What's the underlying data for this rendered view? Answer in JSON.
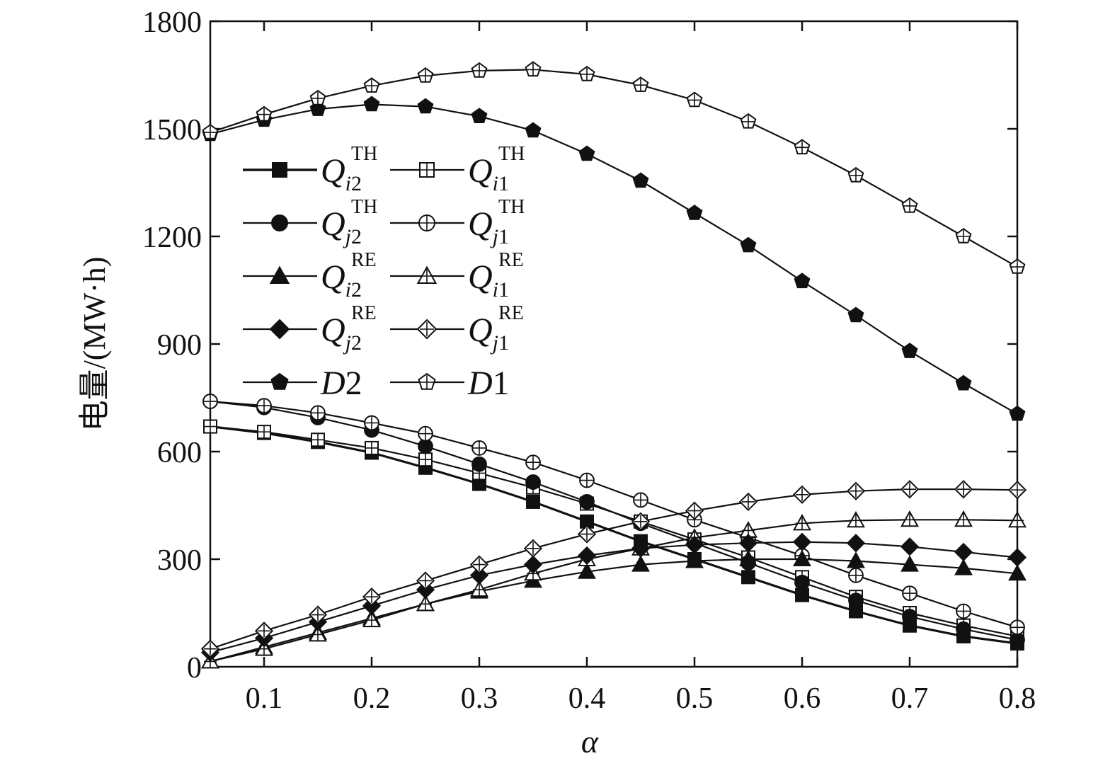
{
  "chart_data": {
    "type": "line",
    "title": "",
    "xlabel": "α",
    "ylabel": "电量/(MW·h)",
    "xlim": [
      0.05,
      0.8
    ],
    "ylim": [
      0,
      1800
    ],
    "xticks": [
      "0.1",
      "0.2",
      "0.3",
      "0.4",
      "0.5",
      "0.6",
      "0.7",
      "0.8"
    ],
    "yticks": [
      "0",
      "300",
      "600",
      "900",
      "1200",
      "1500",
      "1800"
    ],
    "grid": false,
    "legend_placement": "upper-left",
    "x": [
      0.05,
      0.1,
      0.15,
      0.2,
      0.25,
      0.3,
      0.35,
      0.4,
      0.45,
      0.5,
      0.55,
      0.6,
      0.65,
      0.7,
      0.75,
      0.8
    ],
    "series": [
      {
        "label": {
          "main": "Q",
          "sub": "i",
          "subn": "2",
          "sup": "TH"
        },
        "marker": "square-filled",
        "line_weight": "bold",
        "values": [
          670,
          652,
          627,
          597,
          555,
          510,
          460,
          405,
          350,
          300,
          250,
          200,
          155,
          115,
          85,
          65
        ]
      },
      {
        "label": {
          "main": "Q",
          "sub": "i",
          "subn": "1",
          "sup": "TH"
        },
        "marker": "square-open-cross",
        "values": [
          670,
          655,
          633,
          610,
          578,
          540,
          500,
          455,
          405,
          355,
          305,
          250,
          195,
          150,
          115,
          85
        ]
      },
      {
        "label": {
          "main": "Q",
          "sub": "j",
          "subn": "2",
          "sup": "TH"
        },
        "marker": "circle-filled",
        "values": [
          740,
          723,
          695,
          660,
          615,
          565,
          515,
          460,
          400,
          345,
          290,
          235,
          185,
          140,
          105,
          75
        ]
      },
      {
        "label": {
          "main": "Q",
          "sub": "j",
          "subn": "1",
          "sup": "TH"
        },
        "marker": "circle-open-cross",
        "values": [
          740,
          728,
          708,
          680,
          650,
          610,
          570,
          520,
          465,
          410,
          360,
          310,
          255,
          205,
          155,
          110
        ]
      },
      {
        "label": {
          "main": "Q",
          "sub": "i",
          "subn": "2",
          "sup": "RE"
        },
        "marker": "triangle-filled",
        "values": [
          15,
          55,
          95,
          135,
          175,
          210,
          240,
          265,
          285,
          295,
          300,
          300,
          295,
          285,
          275,
          260
        ]
      },
      {
        "label": {
          "main": "Q",
          "sub": "i",
          "subn": "1",
          "sup": "RE"
        },
        "marker": "triangle-open-cross",
        "values": [
          15,
          50,
          90,
          130,
          175,
          215,
          260,
          300,
          330,
          360,
          380,
          400,
          408,
          410,
          410,
          408
        ]
      },
      {
        "label": {
          "main": "Q",
          "sub": "j",
          "subn": "2",
          "sup": "RE"
        },
        "marker": "diamond-filled",
        "values": [
          40,
          80,
          125,
          170,
          215,
          255,
          285,
          310,
          330,
          340,
          345,
          348,
          345,
          335,
          320,
          305
        ]
      },
      {
        "label": {
          "main": "Q",
          "sub": "j",
          "subn": "1",
          "sup": "RE"
        },
        "marker": "diamond-open-cross",
        "values": [
          50,
          100,
          145,
          195,
          240,
          285,
          330,
          370,
          405,
          435,
          460,
          480,
          490,
          495,
          495,
          493
        ]
      },
      {
        "label": {
          "main": "D",
          "sub": "",
          "subn": "2",
          "sup": ""
        },
        "marker": "pentagon-filled",
        "values": [
          1485,
          1525,
          1555,
          1568,
          1562,
          1535,
          1495,
          1430,
          1355,
          1265,
          1175,
          1075,
          980,
          880,
          790,
          705
        ]
      },
      {
        "label": {
          "main": "D",
          "sub": "",
          "subn": "1",
          "sup": ""
        },
        "marker": "pentagon-open-cross",
        "values": [
          1490,
          1540,
          1585,
          1620,
          1648,
          1662,
          1665,
          1652,
          1622,
          1580,
          1520,
          1448,
          1370,
          1285,
          1200,
          1115
        ]
      }
    ]
  }
}
